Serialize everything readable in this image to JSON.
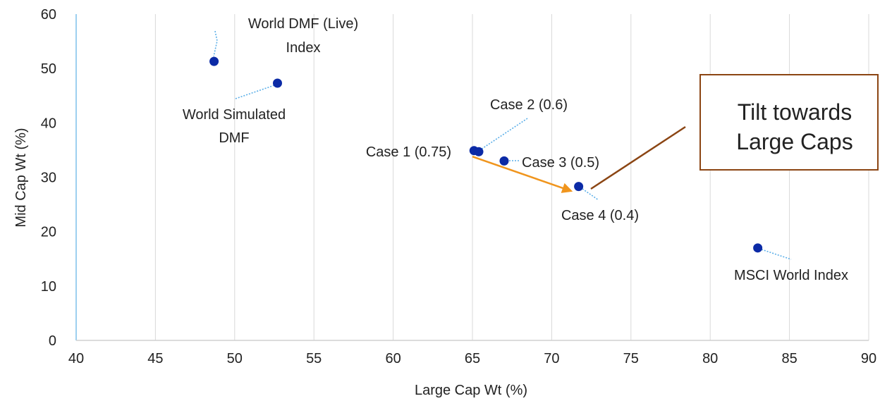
{
  "chart_data": {
    "type": "scatter",
    "xlabel": "Large Cap Wt (%)",
    "ylabel": "Mid Cap Wt (%)",
    "xlim": [
      40,
      90
    ],
    "ylim": [
      0,
      60
    ],
    "x_ticks": [
      "40",
      "45",
      "50",
      "55",
      "60",
      "65",
      "70",
      "75",
      "80",
      "85",
      "90"
    ],
    "y_ticks": [
      "0",
      "10",
      "20",
      "30",
      "40",
      "50",
      "60"
    ],
    "grid": "vertical",
    "marker_color": "#0b2aa6",
    "points": [
      {
        "label": [
          "World DMF (Live)",
          "Index"
        ],
        "x": 48.7,
        "y": 51.3
      },
      {
        "label": [
          "World Simulated",
          "DMF"
        ],
        "x": 52.7,
        "y": 47.3
      },
      {
        "label": [
          "Case 1 (0.75)"
        ],
        "x": 65.1,
        "y": 34.9
      },
      {
        "label": [
          "Case 2 (0.6)"
        ],
        "x": 65.4,
        "y": 34.7
      },
      {
        "label": [
          "Case 3 (0.5)"
        ],
        "x": 67.0,
        "y": 33.0
      },
      {
        "label": [
          "Case 4 (0.4)"
        ],
        "x": 71.7,
        "y": 28.3
      },
      {
        "label": [
          "MSCI World Index"
        ],
        "x": 83.0,
        "y": 17.0
      }
    ],
    "annotation": {
      "text": [
        "Tilt towards",
        "Large Caps"
      ],
      "arrow_from": [
        65.0,
        33.8
      ],
      "arrow_to": [
        71.2,
        27.5
      ],
      "arrow_color": "#f0951d",
      "box_border_color": "#8b4513"
    }
  }
}
